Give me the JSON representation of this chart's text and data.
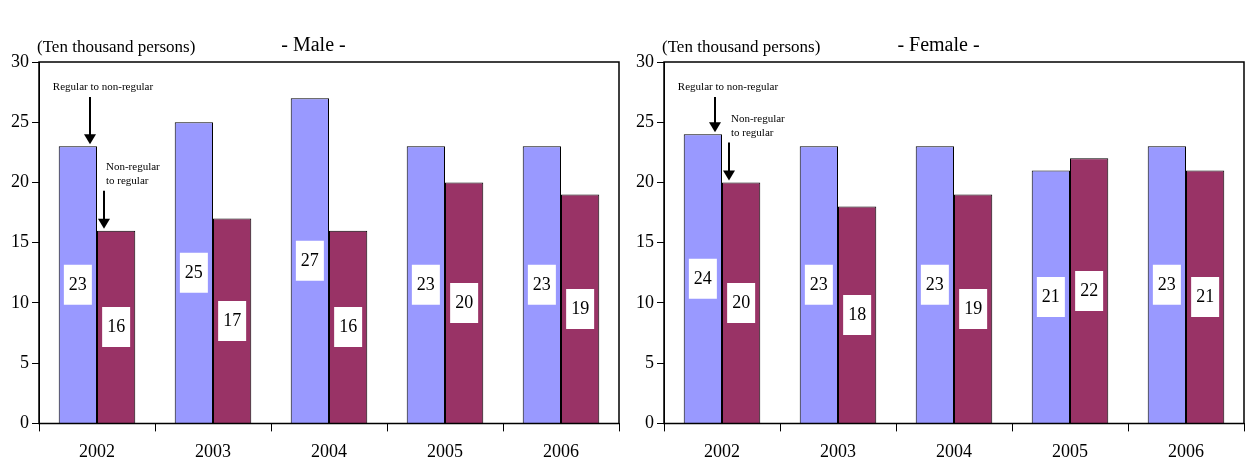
{
  "chart_data": [
    {
      "type": "bar",
      "title": "- Male -",
      "ylabel": "(Ten thousand persons)",
      "categories": [
        "2002",
        "2003",
        "2004",
        "2005",
        "2006"
      ],
      "series": [
        {
          "color": "#9999ff",
          "values": [
            23,
            25,
            27,
            23,
            23
          ]
        },
        {
          "color": "#993366",
          "values": [
            16,
            17,
            16,
            20,
            19
          ]
        }
      ],
      "annotations": [
        "Regular to non-regular",
        "Non-regular to regular"
      ],
      "ylim": [
        0,
        30
      ],
      "yticks": [
        0,
        5,
        10,
        15,
        20,
        25,
        30
      ],
      "grid": false,
      "legend": false,
      "data_labels": true
    },
    {
      "type": "bar",
      "title": "- Female -",
      "ylabel": "(Ten thousand persons)",
      "categories": [
        "2002",
        "2003",
        "2004",
        "2005",
        "2006"
      ],
      "series": [
        {
          "color": "#9999ff",
          "values": [
            24,
            23,
            23,
            21,
            23
          ]
        },
        {
          "color": "#993366",
          "values": [
            20,
            18,
            19,
            22,
            21
          ]
        }
      ],
      "annotations": [
        "Regular to non-regular",
        "Non-regular to regular"
      ],
      "ylim": [
        0,
        30
      ],
      "yticks": [
        0,
        5,
        10,
        15,
        20,
        25,
        30
      ],
      "grid": false,
      "legend": false,
      "data_labels": true
    }
  ]
}
